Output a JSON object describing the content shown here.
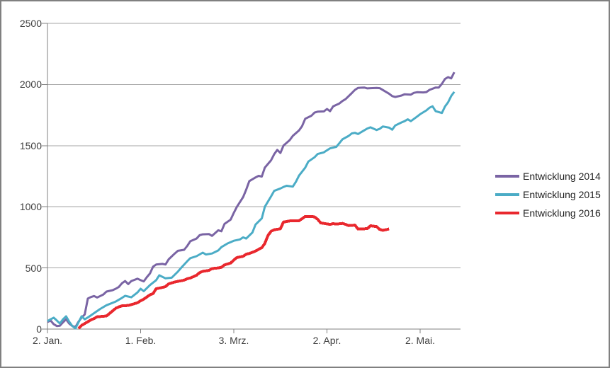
{
  "chart_data": {
    "type": "line",
    "title": "",
    "grid": true,
    "legend_position": "right",
    "grid_color": "#A6A6A6",
    "axis_color": "#808080",
    "tick_label_color": "#3F3F3F",
    "x_axis": {
      "unit": "days-since-first-tick",
      "range_days": [
        0,
        131
      ],
      "tick_days": [
        0,
        30,
        60,
        90,
        120
      ],
      "tick_labels": [
        "2. Jan.",
        "1. Feb.",
        "3. Mrz.",
        "2. Apr.",
        "2. Mai."
      ]
    },
    "y_axis": {
      "range": [
        0,
        2500
      ],
      "ticks": [
        0,
        500,
        1000,
        1500,
        2000,
        2500
      ],
      "tick_labels": [
        "0",
        "500",
        "1000",
        "1500",
        "2000",
        "2500"
      ]
    },
    "series": [
      {
        "name": "Entwicklung 2014",
        "color": "#7A64A4",
        "stroke_width": 3,
        "points": [
          [
            0,
            58
          ],
          [
            1,
            70
          ],
          [
            2,
            40
          ],
          [
            3,
            25
          ],
          [
            4,
            28
          ],
          [
            5,
            55
          ],
          [
            6,
            80
          ],
          [
            7,
            45
          ],
          [
            8,
            25
          ],
          [
            9,
            17
          ],
          [
            10,
            60
          ],
          [
            11,
            94
          ],
          [
            12,
            120
          ],
          [
            13,
            250
          ],
          [
            14,
            262
          ],
          [
            15,
            270
          ],
          [
            16,
            258
          ],
          [
            17,
            270
          ],
          [
            18,
            283
          ],
          [
            19,
            307
          ],
          [
            21,
            318
          ],
          [
            22,
            330
          ],
          [
            23,
            345
          ],
          [
            24,
            375
          ],
          [
            25,
            393
          ],
          [
            26,
            368
          ],
          [
            27,
            393
          ],
          [
            29,
            412
          ],
          [
            30,
            400
          ],
          [
            31,
            390
          ],
          [
            32,
            425
          ],
          [
            33,
            455
          ],
          [
            34,
            510
          ],
          [
            35,
            528
          ],
          [
            37,
            533
          ],
          [
            38,
            528
          ],
          [
            39,
            570
          ],
          [
            41,
            618
          ],
          [
            42,
            640
          ],
          [
            44,
            648
          ],
          [
            45,
            680
          ],
          [
            46,
            718
          ],
          [
            48,
            740
          ],
          [
            49,
            768
          ],
          [
            50,
            775
          ],
          [
            52,
            777
          ],
          [
            53,
            762
          ],
          [
            55,
            808
          ],
          [
            56,
            800
          ],
          [
            57,
            860
          ],
          [
            59,
            895
          ],
          [
            60,
            950
          ],
          [
            61,
            1000
          ],
          [
            63,
            1080
          ],
          [
            64,
            1140
          ],
          [
            65,
            1210
          ],
          [
            67,
            1240
          ],
          [
            68,
            1253
          ],
          [
            69,
            1247
          ],
          [
            70,
            1320
          ],
          [
            72,
            1380
          ],
          [
            73,
            1430
          ],
          [
            74,
            1465
          ],
          [
            75,
            1440
          ],
          [
            76,
            1500
          ],
          [
            78,
            1545
          ],
          [
            79,
            1580
          ],
          [
            81,
            1625
          ],
          [
            82,
            1660
          ],
          [
            83,
            1720
          ],
          [
            85,
            1745
          ],
          [
            86,
            1770
          ],
          [
            87,
            1778
          ],
          [
            89,
            1780
          ],
          [
            90,
            1800
          ],
          [
            91,
            1782
          ],
          [
            92,
            1822
          ],
          [
            94,
            1845
          ],
          [
            95,
            1865
          ],
          [
            96,
            1880
          ],
          [
            98,
            1930
          ],
          [
            99,
            1956
          ],
          [
            100,
            1972
          ],
          [
            102,
            1975
          ],
          [
            103,
            1968
          ],
          [
            104,
            1970
          ],
          [
            106,
            1972
          ],
          [
            107,
            1970
          ],
          [
            108,
            1955
          ],
          [
            110,
            1925
          ],
          [
            111,
            1905
          ],
          [
            112,
            1898
          ],
          [
            114,
            1910
          ],
          [
            115,
            1920
          ],
          [
            117,
            1917
          ],
          [
            118,
            1932
          ],
          [
            119,
            1937
          ],
          [
            121,
            1935
          ],
          [
            122,
            1938
          ],
          [
            123,
            1956
          ],
          [
            125,
            1975
          ],
          [
            126,
            1975
          ],
          [
            127,
            2005
          ],
          [
            128,
            2045
          ],
          [
            129,
            2060
          ],
          [
            130,
            2050
          ],
          [
            131,
            2100
          ]
        ]
      },
      {
        "name": "Entwicklung 2015",
        "color": "#4BACC6",
        "stroke_width": 3,
        "points": [
          [
            0,
            65
          ],
          [
            1,
            80
          ],
          [
            2,
            93
          ],
          [
            3,
            70
          ],
          [
            4,
            46
          ],
          [
            5,
            80
          ],
          [
            6,
            104
          ],
          [
            7,
            60
          ],
          [
            8,
            25
          ],
          [
            9,
            6
          ],
          [
            10,
            55
          ],
          [
            11,
            105
          ],
          [
            12,
            80
          ],
          [
            13,
            95
          ],
          [
            15,
            130
          ],
          [
            17,
            165
          ],
          [
            19,
            195
          ],
          [
            22,
            225
          ],
          [
            24,
            255
          ],
          [
            25,
            272
          ],
          [
            27,
            260
          ],
          [
            29,
            300
          ],
          [
            30,
            330
          ],
          [
            31,
            310
          ],
          [
            33,
            360
          ],
          [
            35,
            400
          ],
          [
            36,
            440
          ],
          [
            38,
            415
          ],
          [
            40,
            420
          ],
          [
            42,
            470
          ],
          [
            43,
            500
          ],
          [
            45,
            555
          ],
          [
            46,
            580
          ],
          [
            48,
            596
          ],
          [
            50,
            625
          ],
          [
            51,
            610
          ],
          [
            53,
            618
          ],
          [
            55,
            643
          ],
          [
            56,
            670
          ],
          [
            58,
            700
          ],
          [
            60,
            722
          ],
          [
            62,
            733
          ],
          [
            63,
            750
          ],
          [
            64,
            740
          ],
          [
            66,
            790
          ],
          [
            67,
            855
          ],
          [
            69,
            905
          ],
          [
            70,
            1000
          ],
          [
            72,
            1085
          ],
          [
            73,
            1130
          ],
          [
            75,
            1150
          ],
          [
            76,
            1162
          ],
          [
            77,
            1172
          ],
          [
            79,
            1165
          ],
          [
            80,
            1205
          ],
          [
            81,
            1255
          ],
          [
            83,
            1320
          ],
          [
            84,
            1370
          ],
          [
            86,
            1405
          ],
          [
            87,
            1432
          ],
          [
            89,
            1445
          ],
          [
            90,
            1462
          ],
          [
            91,
            1478
          ],
          [
            93,
            1490
          ],
          [
            94,
            1520
          ],
          [
            95,
            1552
          ],
          [
            97,
            1580
          ],
          [
            98,
            1600
          ],
          [
            99,
            1605
          ],
          [
            100,
            1595
          ],
          [
            102,
            1625
          ],
          [
            103,
            1640
          ],
          [
            104,
            1650
          ],
          [
            106,
            1628
          ],
          [
            107,
            1638
          ],
          [
            108,
            1657
          ],
          [
            110,
            1647
          ],
          [
            111,
            1630
          ],
          [
            112,
            1665
          ],
          [
            114,
            1690
          ],
          [
            115,
            1700
          ],
          [
            116,
            1715
          ],
          [
            117,
            1700
          ],
          [
            119,
            1737
          ],
          [
            120,
            1757
          ],
          [
            122,
            1788
          ],
          [
            123,
            1810
          ],
          [
            124,
            1822
          ],
          [
            125,
            1782
          ],
          [
            127,
            1767
          ],
          [
            128,
            1820
          ],
          [
            129,
            1855
          ],
          [
            130,
            1905
          ],
          [
            131,
            1940
          ]
        ]
      },
      {
        "name": "Entwicklung 2016",
        "color": "#E9282E",
        "stroke_width": 4,
        "points": [
          [
            10,
            5
          ],
          [
            11,
            30
          ],
          [
            13,
            60
          ],
          [
            14,
            75
          ],
          [
            15,
            86
          ],
          [
            16,
            100
          ],
          [
            18,
            105
          ],
          [
            19,
            107
          ],
          [
            20,
            128
          ],
          [
            22,
            170
          ],
          [
            23,
            182
          ],
          [
            24,
            190
          ],
          [
            26,
            193
          ],
          [
            27,
            200
          ],
          [
            29,
            215
          ],
          [
            30,
            232
          ],
          [
            31,
            245
          ],
          [
            33,
            280
          ],
          [
            34,
            290
          ],
          [
            35,
            330
          ],
          [
            37,
            340
          ],
          [
            38,
            347
          ],
          [
            39,
            370
          ],
          [
            41,
            385
          ],
          [
            42,
            390
          ],
          [
            44,
            400
          ],
          [
            45,
            412
          ],
          [
            46,
            418
          ],
          [
            48,
            440
          ],
          [
            49,
            462
          ],
          [
            50,
            472
          ],
          [
            52,
            480
          ],
          [
            53,
            495
          ],
          [
            55,
            500
          ],
          [
            56,
            505
          ],
          [
            57,
            525
          ],
          [
            59,
            540
          ],
          [
            60,
            565
          ],
          [
            61,
            585
          ],
          [
            63,
            595
          ],
          [
            64,
            612
          ],
          [
            65,
            618
          ],
          [
            67,
            638
          ],
          [
            68,
            652
          ],
          [
            69,
            665
          ],
          [
            70,
            700
          ],
          [
            71,
            765
          ],
          [
            72,
            800
          ],
          [
            73,
            812
          ],
          [
            75,
            820
          ],
          [
            76,
            875
          ],
          [
            78,
            884
          ],
          [
            79,
            886
          ],
          [
            81,
            886
          ],
          [
            82,
            903
          ],
          [
            83,
            921
          ],
          [
            85,
            921
          ],
          [
            86,
            917
          ],
          [
            87,
            897
          ],
          [
            88,
            868
          ],
          [
            90,
            860
          ],
          [
            91,
            856
          ],
          [
            92,
            862
          ],
          [
            93,
            858
          ],
          [
            95,
            864
          ],
          [
            96,
            856
          ],
          [
            97,
            846
          ],
          [
            99,
            850
          ],
          [
            100,
            818
          ],
          [
            102,
            820
          ],
          [
            103,
            821
          ],
          [
            104,
            845
          ],
          [
            106,
            838
          ],
          [
            107,
            815
          ],
          [
            108,
            808
          ],
          [
            110,
            818
          ]
        ]
      }
    ]
  }
}
